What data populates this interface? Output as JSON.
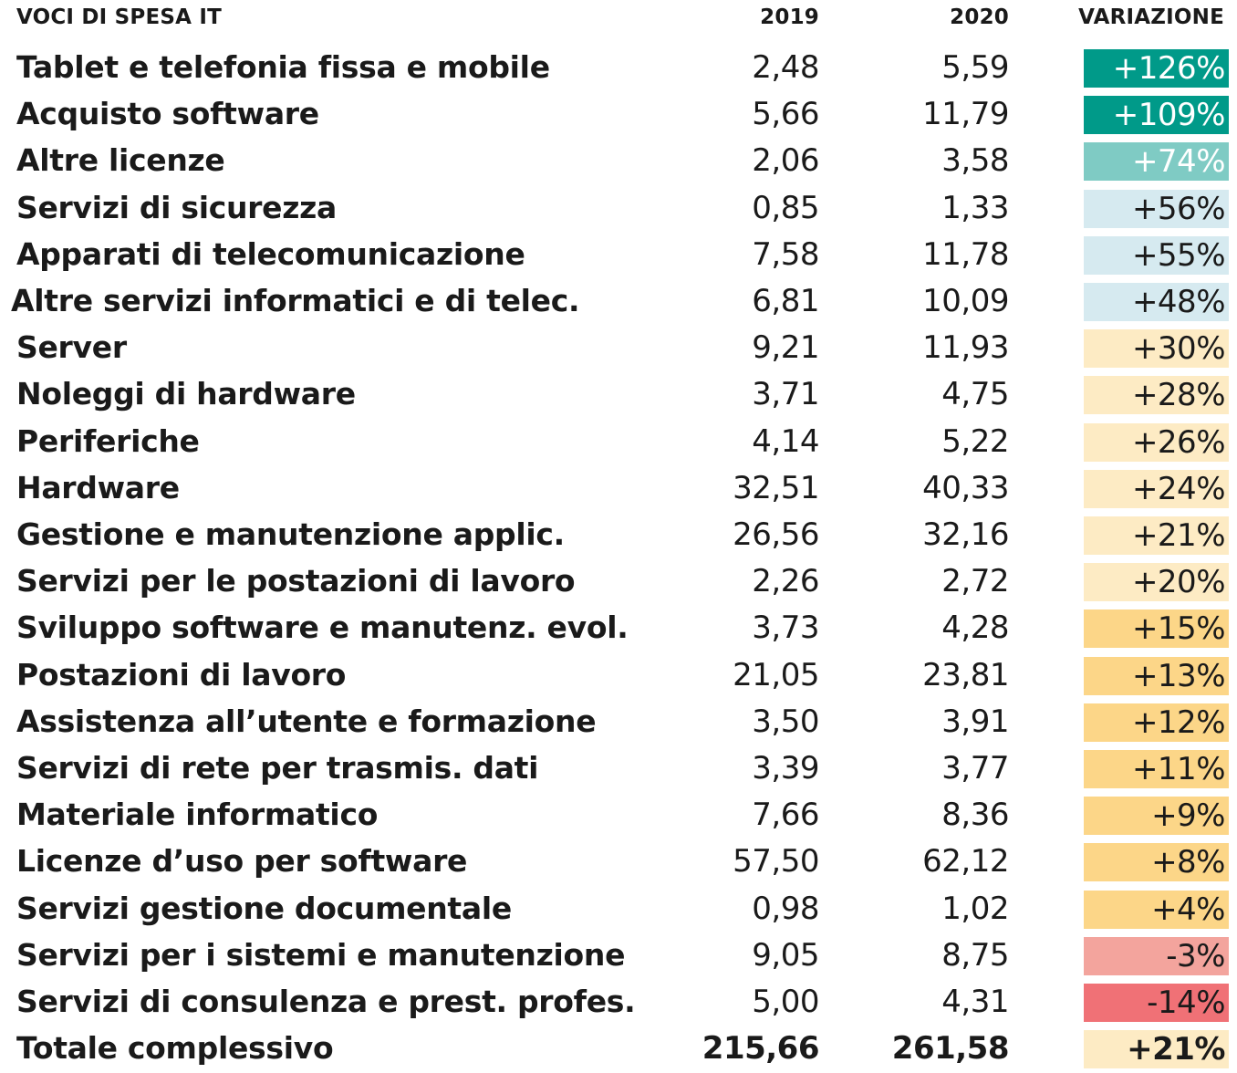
{
  "colors": {
    "dark_teal": "#009a89",
    "teal": "#7fcbc4",
    "light_blue": "#d6eaf0",
    "light_yellow": "#fdebc4",
    "yellow": "#fcd688",
    "light_red": "#f3a49d",
    "red": "#f07176"
  },
  "chart_data": {
    "type": "table",
    "columns": [
      "VOCI DI SPESA IT",
      "2019",
      "2020",
      "VARIAZIONE"
    ],
    "rows": [
      {
        "label": "Tablet e telefonia fissa e mobile",
        "y2019": "2,48",
        "y2020": "5,59",
        "variation": "+126%",
        "color": "dark_teal"
      },
      {
        "label": "Acquisto software",
        "y2019": "5,66",
        "y2020": "11,79",
        "variation": "+109%",
        "color": "dark_teal"
      },
      {
        "label": "Altre licenze",
        "y2019": "2,06",
        "y2020": "3,58",
        "variation": "+74%",
        "color": "teal"
      },
      {
        "label": "Servizi di sicurezza",
        "y2019": "0,85",
        "y2020": "1,33",
        "variation": "+56%",
        "color": "light_blue"
      },
      {
        "label": "Apparati di telecomunicazione",
        "y2019": "7,58",
        "y2020": "11,78",
        "variation": "+55%",
        "color": "light_blue"
      },
      {
        "label": "Altre servizi informatici e di telec.",
        "y2019": "6,81",
        "y2020": "10,09",
        "variation": "+48%",
        "color": "light_blue"
      },
      {
        "label": "Server",
        "y2019": "9,21",
        "y2020": "11,93",
        "variation": "+30%",
        "color": "light_yellow"
      },
      {
        "label": "Noleggi di hardware",
        "y2019": "3,71",
        "y2020": "4,75",
        "variation": "+28%",
        "color": "light_yellow"
      },
      {
        "label": "Periferiche",
        "y2019": "4,14",
        "y2020": "5,22",
        "variation": "+26%",
        "color": "light_yellow"
      },
      {
        "label": "Hardware",
        "y2019": "32,51",
        "y2020": "40,33",
        "variation": "+24%",
        "color": "light_yellow"
      },
      {
        "label": "Gestione e manutenzione applic.",
        "y2019": "26,56",
        "y2020": "32,16",
        "variation": "+21%",
        "color": "light_yellow"
      },
      {
        "label": "Servizi per le postazioni di lavoro",
        "y2019": "2,26",
        "y2020": "2,72",
        "variation": "+20%",
        "color": "light_yellow"
      },
      {
        "label": "Sviluppo software e manutenz. evol.",
        "y2019": "3,73",
        "y2020": "4,28",
        "variation": "+15%",
        "color": "yellow"
      },
      {
        "label": "Postazioni di lavoro",
        "y2019": "21,05",
        "y2020": "23,81",
        "variation": "+13%",
        "color": "yellow"
      },
      {
        "label": "Assistenza all’utente e formazione",
        "y2019": "3,50",
        "y2020": "3,91",
        "variation": "+12%",
        "color": "yellow"
      },
      {
        "label": "Servizi di rete per trasmis. dati",
        "y2019": "3,39",
        "y2020": "3,77",
        "variation": "+11%",
        "color": "yellow"
      },
      {
        "label": "Materiale informatico",
        "y2019": "7,66",
        "y2020": "8,36",
        "variation": "+9%",
        "color": "yellow"
      },
      {
        "label": "Licenze d’uso per software",
        "y2019": "57,50",
        "y2020": "62,12",
        "variation": "+8%",
        "color": "yellow"
      },
      {
        "label": "Servizi gestione documentale",
        "y2019": "0,98",
        "y2020": "1,02",
        "variation": "+4%",
        "color": "yellow"
      },
      {
        "label": "Servizi per i sistemi e manutenzione",
        "y2019": "9,05",
        "y2020": "8,75",
        "variation": "-3%",
        "color": "light_red"
      },
      {
        "label": "Servizi di consulenza e prest. profes.",
        "y2019": "5,00",
        "y2020": "4,31",
        "variation": "-14%",
        "color": "red"
      }
    ],
    "total": {
      "label": "Totale complessivo",
      "y2019": "215,66",
      "y2020": "261,58",
      "variation": "+21%",
      "color": "light_yellow"
    }
  }
}
